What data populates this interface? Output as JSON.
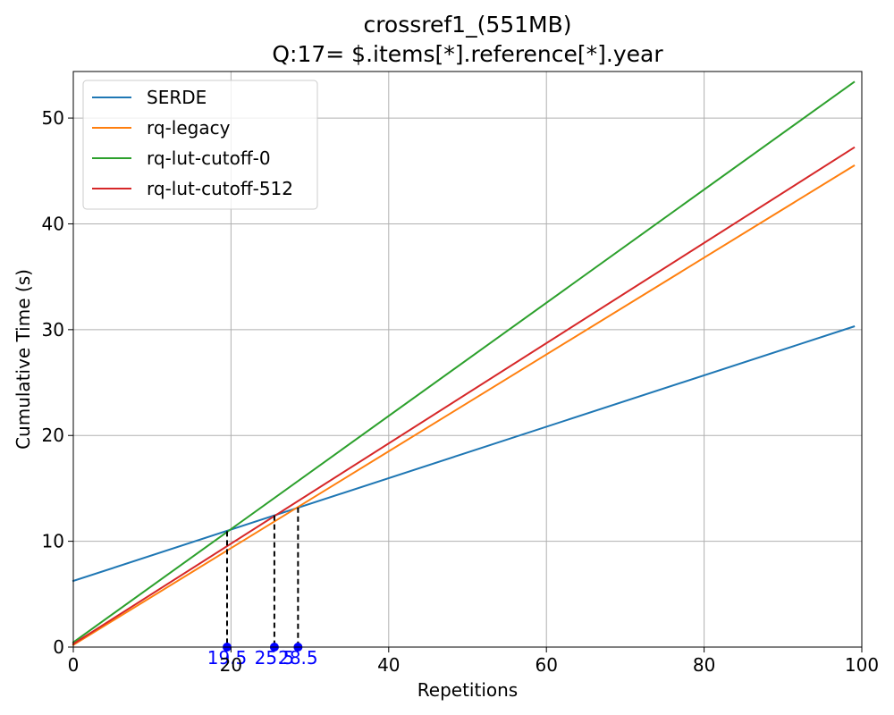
{
  "chart_data": {
    "type": "line",
    "title": "crossref1_(551MB)",
    "subtitle": "Q:17= $.items[*].reference[*].year",
    "xlabel": "Repetitions",
    "ylabel": "Cumulative Time (s)",
    "xlim": [
      0,
      100
    ],
    "ylim": [
      0,
      54.4
    ],
    "x_ticks": [
      0,
      20,
      40,
      60,
      80,
      100
    ],
    "x_tick_labels": [
      "0",
      "20",
      "40",
      "60",
      "80",
      "100"
    ],
    "y_ticks": [
      0,
      10,
      20,
      30,
      40,
      50
    ],
    "y_tick_labels": [
      "0",
      "10",
      "20",
      "30",
      "40",
      "50"
    ],
    "grid": true,
    "legend_position": "top-left",
    "x_range": [
      0,
      99
    ],
    "series": [
      {
        "name": "SERDE",
        "color": "#1f77b4",
        "start": 6.25,
        "end": 30.3
      },
      {
        "name": "rq-legacy",
        "color": "#ff7f0e",
        "start": 0.2,
        "end": 45.5
      },
      {
        "name": "rq-lut-cutoff-0",
        "color": "#2ca02c",
        "start": 0.45,
        "end": 53.4
      },
      {
        "name": "rq-lut-cutoff-512",
        "color": "#d62728",
        "start": 0.3,
        "end": 47.2
      }
    ],
    "crossovers": [
      {
        "x": 19.5,
        "y": 10.95,
        "label": "19.5"
      },
      {
        "x": 25.5,
        "y": 12.45,
        "label": "25.5"
      },
      {
        "x": 28.5,
        "y": 13.2,
        "label": "28.5"
      }
    ],
    "crossover_color": "#0000ff"
  }
}
